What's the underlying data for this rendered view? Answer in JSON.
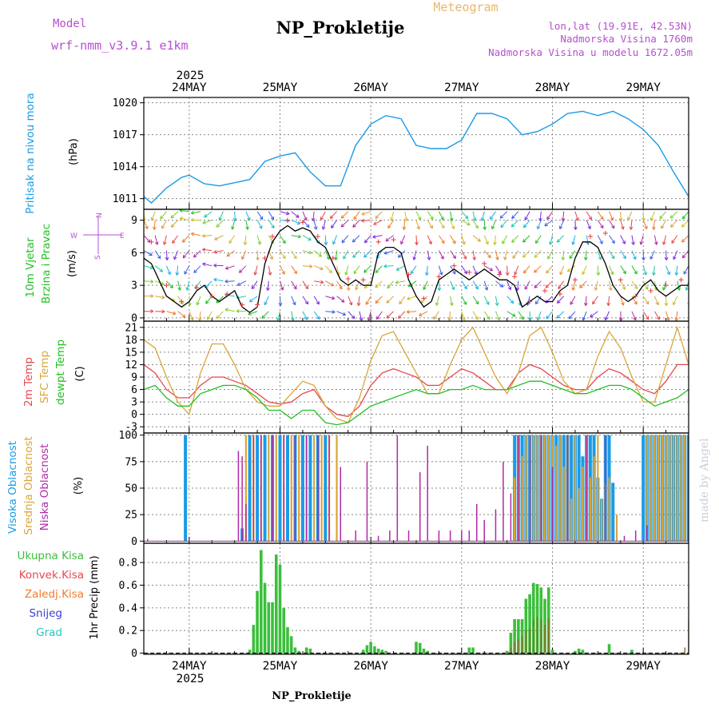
{
  "header": {
    "model_label": "Model",
    "model_value": "wrf-nmm_v3.9.1 e1km",
    "title": "NP_Prokletije",
    "subtitle": "Meteogram",
    "coords": "lon,lat (19.91E, 42.53N)",
    "elevation": "Nadmorska Visina 1760m",
    "model_elevation": "Nadmorska Visina u modelu 1672.05m",
    "watermark": "made by Angel",
    "footer": "NP_Prokletije"
  },
  "colors": {
    "pressure": "#1a9be6",
    "temp2m": "#e8474d",
    "sfc": "#d9a53a",
    "dew": "#22c122",
    "high": "#1a9be6",
    "mid": "#d9a53a",
    "low": "#b02aa8",
    "total": "#3bbf3b",
    "conv": "#e8474d",
    "freezing": "#f07b2a",
    "snow": "#3d3dd4",
    "graupel": "#2ac4c4",
    "windspeed": "#000000",
    "gust": "#e8474d"
  },
  "time_axis": {
    "year": "2025",
    "days": [
      "24MAY",
      "25MAY",
      "26MAY",
      "27MAY",
      "28MAY",
      "29MAY"
    ],
    "range_hours": [
      -12,
      132
    ]
  },
  "compass": {
    "n": "N",
    "s": "S",
    "e": "E",
    "w": "W"
  },
  "chart_data": [
    {
      "type": "line",
      "panel": "pressure",
      "ylabel_left": "Pritisak na nivou mora",
      "ylabel_unit": "(hPa)",
      "yticks": [
        1011,
        1014,
        1017,
        1020
      ],
      "ylim": [
        1010.0,
        1020.5
      ],
      "series": [
        {
          "name": "Pritisak na nivou mora",
          "x": [
            -12,
            -10,
            -6,
            -2,
            0,
            4,
            8,
            12,
            16,
            20,
            24,
            28,
            32,
            36,
            40,
            44,
            48,
            52,
            56,
            60,
            64,
            68,
            72,
            76,
            80,
            84,
            88,
            92,
            96,
            100,
            104,
            108,
            112,
            116,
            120,
            124,
            128,
            132
          ],
          "y": [
            1011.2,
            1010.6,
            1012.0,
            1013.0,
            1013.2,
            1012.4,
            1012.2,
            1012.5,
            1012.8,
            1014.5,
            1015.0,
            1015.3,
            1013.5,
            1012.2,
            1012.2,
            1016.0,
            1018.0,
            1018.8,
            1018.5,
            1016.0,
            1015.7,
            1015.7,
            1016.5,
            1019.0,
            1019.0,
            1018.5,
            1017.0,
            1017.3,
            1018.0,
            1019.0,
            1019.2,
            1018.8,
            1019.2,
            1018.5,
            1017.5,
            1016.0,
            1013.5,
            1011.2
          ]
        }
      ]
    },
    {
      "type": "line",
      "panel": "wind",
      "ylabel_left_1": "10m Vjetar",
      "ylabel_left_2": "Brzina i Pravac",
      "ylabel_unit": "(m/s)",
      "yticks": [
        0,
        3,
        6,
        9
      ],
      "ylim": [
        -0.3,
        10
      ],
      "series": [
        {
          "name": "Brzina",
          "x": [
            -12,
            -10,
            -8,
            -6,
            -4,
            -2,
            0,
            2,
            4,
            6,
            8,
            10,
            12,
            14,
            16,
            18,
            20,
            22,
            24,
            26,
            28,
            30,
            32,
            34,
            36,
            38,
            40,
            42,
            44,
            46,
            48,
            50,
            52,
            54,
            56,
            58,
            60,
            62,
            64,
            66,
            68,
            70,
            72,
            74,
            76,
            78,
            80,
            82,
            84,
            86,
            88,
            90,
            92,
            94,
            96,
            98,
            100,
            102,
            104,
            106,
            108,
            110,
            112,
            114,
            116,
            118,
            120,
            122,
            124,
            126,
            128,
            130,
            132
          ],
          "y": [
            5.5,
            5.0,
            3.5,
            2.0,
            1.5,
            1.0,
            1.5,
            2.5,
            3.0,
            2.0,
            1.5,
            2.0,
            2.5,
            1.0,
            0.5,
            1.0,
            5.0,
            7.0,
            8.0,
            8.5,
            8.0,
            8.3,
            8.0,
            7.0,
            6.5,
            5.0,
            3.5,
            3.0,
            3.5,
            3.0,
            3.0,
            6.0,
            6.5,
            6.5,
            6.0,
            3.5,
            2.0,
            1.0,
            1.5,
            3.5,
            4.0,
            4.5,
            4.0,
            3.5,
            4.0,
            4.5,
            4.0,
            3.5,
            3.5,
            3.0,
            1.0,
            1.5,
            2.0,
            1.5,
            1.5,
            2.5,
            3.0,
            5.5,
            7.0,
            7.0,
            6.5,
            5.0,
            3.0,
            2.0,
            1.5,
            2.0,
            3.0,
            3.5,
            2.5,
            2.0,
            2.5,
            3.0,
            3.0
          ]
        },
        {
          "name": "Udar",
          "x": [
            -10,
            -6,
            -2,
            2,
            6,
            10,
            14,
            18,
            20,
            22,
            26,
            30,
            34,
            38,
            42,
            46,
            50,
            54,
            58,
            62,
            66,
            70,
            74,
            78,
            82,
            86,
            90,
            94,
            98,
            102,
            106,
            110,
            114,
            118,
            122,
            126,
            130
          ],
          "y": [
            7.0,
            3.0,
            1.5,
            2.8,
            2.0,
            2.2,
            1.2,
            1.2,
            5.5,
            7.5,
            9.0,
            8.8,
            7.5,
            5.5,
            3.6,
            3.5,
            7.0,
            7.2,
            4.0,
            1.8,
            3.8,
            4.8,
            4.2,
            5.0,
            4.0,
            3.8,
            1.5,
            2.5,
            2.2,
            3.5,
            7.5,
            7.8,
            3.5,
            2.0,
            2.5,
            3.0,
            3.5
          ]
        }
      ]
    },
    {
      "type": "line",
      "panel": "temperature",
      "ylabel_left_1": "2m Temp",
      "ylabel_left_2": "SFC Temp",
      "ylabel_left_3": "dewpt Temp",
      "ylabel_unit": "(C)",
      "yticks": [
        -3,
        0,
        3,
        6,
        9,
        12,
        15,
        18,
        21
      ],
      "ylim": [
        -4.5,
        22.5
      ],
      "x": [
        -12,
        -9,
        -6,
        -3,
        0,
        3,
        6,
        9,
        12,
        15,
        18,
        21,
        24,
        27,
        30,
        33,
        36,
        39,
        42,
        45,
        48,
        51,
        54,
        57,
        60,
        63,
        66,
        69,
        72,
        75,
        78,
        81,
        84,
        87,
        90,
        93,
        96,
        99,
        102,
        105,
        108,
        111,
        114,
        117,
        120,
        123,
        126,
        129,
        132
      ],
      "series": [
        {
          "name": "2m Temp",
          "y": [
            12,
            10,
            6,
            4,
            4,
            7,
            9,
            9,
            8,
            7,
            5,
            3,
            2.5,
            3,
            5,
            6,
            2,
            0,
            -0.5,
            2,
            7,
            10,
            11,
            10,
            9,
            7,
            7,
            9,
            11,
            10,
            8,
            6,
            6,
            10,
            12,
            11,
            9,
            7,
            6,
            6,
            9,
            11,
            10,
            8,
            6,
            5,
            8,
            12,
            12
          ]
        },
        {
          "name": "SFC Temp",
          "y": [
            18,
            16,
            9,
            3,
            0,
            10,
            17,
            17,
            12,
            6,
            3,
            2,
            2,
            5,
            8,
            7,
            2,
            -1,
            -2,
            4,
            13,
            19,
            20,
            15,
            10,
            5,
            5,
            12,
            18,
            21,
            15,
            9,
            5,
            10,
            19,
            21,
            15,
            8,
            5,
            6,
            14,
            20,
            16,
            9,
            3,
            3,
            12,
            21,
            12
          ]
        },
        {
          "name": "dewpt Temp",
          "y": [
            6,
            7,
            4,
            2,
            2,
            5,
            6,
            7,
            7,
            6,
            4,
            1,
            1,
            -1,
            1,
            1,
            -2,
            -2.5,
            -2,
            0,
            2,
            3,
            4,
            5,
            6,
            5,
            5,
            6,
            6,
            7,
            6,
            6,
            6,
            7,
            8,
            8,
            7,
            6,
            5,
            5,
            6,
            7,
            7,
            6,
            4,
            2,
            3,
            4,
            6
          ]
        }
      ]
    },
    {
      "type": "bar",
      "panel": "cloud",
      "ylabel_left_1": "Visoka Oblacnost",
      "ylabel_left_2": "Srednja Oblacnost",
      "ylabel_left_3": "Niska Oblacnost",
      "ylabel_unit": "(%)",
      "yticks": [
        0,
        25,
        50,
        75,
        100
      ],
      "ylim": [
        -2,
        102
      ],
      "series": [
        {
          "name": "Visoka Oblacnost",
          "x": [
            -1,
            14,
            16,
            18,
            20,
            22,
            24,
            26,
            28,
            30,
            32,
            34,
            36,
            86,
            87,
            88,
            89,
            90,
            91,
            92,
            93,
            94,
            95,
            96,
            97,
            98,
            99,
            100,
            101,
            102,
            103,
            104,
            105,
            106,
            107,
            108,
            109,
            110,
            111,
            112,
            120,
            121,
            122,
            123,
            124,
            125,
            126,
            127,
            128,
            129,
            130,
            131,
            132
          ],
          "values": [
            100,
            12,
            100,
            100,
            100,
            100,
            100,
            100,
            100,
            100,
            100,
            100,
            100,
            100,
            100,
            100,
            100,
            100,
            100,
            100,
            100,
            100,
            100,
            100,
            100,
            100,
            100,
            100,
            100,
            100,
            100,
            80,
            100,
            100,
            100,
            60,
            40,
            100,
            100,
            55,
            100,
            100,
            100,
            100,
            100,
            100,
            100,
            100,
            100,
            100,
            100,
            100,
            100
          ]
        },
        {
          "name": "Srednja Oblacnost",
          "x": [
            15,
            17,
            19,
            21,
            23,
            25,
            27,
            29,
            31,
            33,
            35,
            37,
            39,
            86,
            87,
            88,
            89,
            90,
            91,
            92,
            93,
            94,
            95,
            96,
            97,
            98,
            99,
            100,
            101,
            102,
            103,
            104,
            105,
            106,
            107,
            108,
            109,
            110,
            111,
            113,
            121,
            122,
            123,
            124,
            125,
            126,
            127,
            128,
            129,
            130,
            131
          ],
          "values": [
            100,
            100,
            100,
            100,
            100,
            100,
            100,
            100,
            100,
            100,
            100,
            100,
            100,
            60,
            100,
            80,
            100,
            100,
            100,
            100,
            100,
            100,
            100,
            100,
            90,
            100,
            70,
            100,
            40,
            100,
            50,
            70,
            100,
            60,
            80,
            100,
            40,
            55,
            60,
            25,
            100,
            100,
            100,
            100,
            100,
            100,
            100,
            100,
            100,
            100,
            100
          ]
        },
        {
          "name": "Niska Oblacnost",
          "x": [
            -11,
            13,
            14,
            15,
            17,
            19,
            22,
            25,
            28,
            31,
            34,
            37,
            40,
            44,
            47,
            50,
            53,
            55,
            58,
            61,
            63,
            66,
            69,
            72,
            74,
            76,
            78,
            81,
            83,
            85,
            87,
            90,
            93,
            96,
            100,
            105,
            110,
            115,
            118,
            121
          ],
          "values": [
            2,
            85,
            80,
            35,
            100,
            100,
            100,
            100,
            100,
            100,
            100,
            100,
            70,
            10,
            75,
            5,
            10,
            100,
            10,
            65,
            90,
            10,
            10,
            10,
            10,
            35,
            20,
            30,
            75,
            45,
            100,
            100,
            100,
            70,
            100,
            100,
            100,
            5,
            10,
            15
          ]
        }
      ]
    },
    {
      "type": "bar",
      "panel": "precip",
      "ylabel_unit": "1hr Precip (mm)",
      "legend": [
        "Ukupna Kisa",
        "Konvek.Kisa",
        "Zaledj.Kisa",
        "Snijeg",
        "Grad"
      ],
      "yticks": [
        0,
        0.2,
        0.4,
        0.6,
        0.8
      ],
      "yticklabels": [
        "0",
        "0.2",
        "0.4",
        "0.6",
        "0.8"
      ],
      "ylim": [
        -0.01,
        0.97
      ],
      "series": [
        {
          "name": "Ukupna Kisa",
          "x": [
            16,
            17,
            18,
            19,
            20,
            21,
            22,
            23,
            24,
            25,
            26,
            27,
            28,
            29,
            31,
            32,
            46,
            47,
            48,
            49,
            50,
            51,
            52,
            60,
            61,
            62,
            63,
            74,
            75,
            84,
            85,
            86,
            87,
            88,
            89,
            90,
            91,
            92,
            93,
            94,
            95,
            96,
            102,
            103,
            104,
            111,
            117
          ],
          "values": [
            0.03,
            0.25,
            0.55,
            0.91,
            0.62,
            0.45,
            0.45,
            0.87,
            0.78,
            0.4,
            0.23,
            0.15,
            0.05,
            0.02,
            0.05,
            0.04,
            0.03,
            0.07,
            0.1,
            0.06,
            0.04,
            0.03,
            0.02,
            0.1,
            0.09,
            0.04,
            0.02,
            0.05,
            0.05,
            0.02,
            0.18,
            0.3,
            0.3,
            0.3,
            0.48,
            0.52,
            0.62,
            0.61,
            0.58,
            0.48,
            0.58,
            0.03,
            0.02,
            0.04,
            0.03,
            0.08,
            0.03
          ]
        },
        {
          "name": "Konvek.Kisa",
          "x": [
            85,
            86,
            87,
            88,
            89,
            90,
            91,
            92,
            93,
            94,
            95,
            131,
            132
          ],
          "values": [
            0.05,
            0.1,
            0.12,
            0.15,
            0.2,
            0.22,
            0.3,
            0.32,
            0.3,
            0.25,
            0.3,
            0.05,
            0.3
          ]
        },
        {
          "name": "Zaledj.Kisa",
          "x": [],
          "values": []
        },
        {
          "name": "Snijeg",
          "x": [],
          "values": []
        },
        {
          "name": "Grad",
          "x": [],
          "values": []
        }
      ]
    }
  ]
}
